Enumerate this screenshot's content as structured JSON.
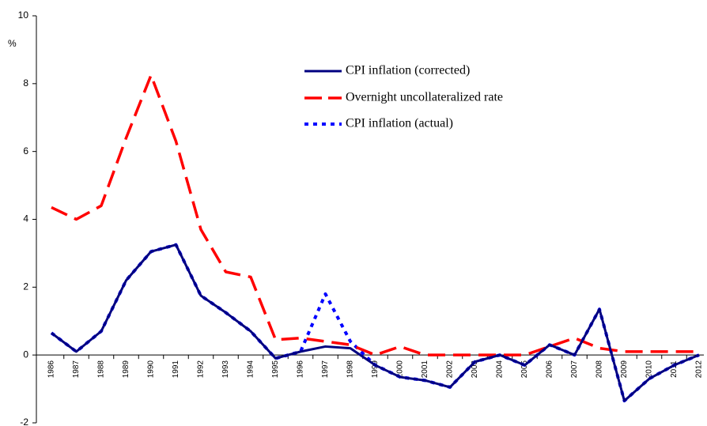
{
  "chart_data": {
    "type": "line",
    "y_label": "%",
    "categories": [
      "1986",
      "1987",
      "1988",
      "1989",
      "1990",
      "1991",
      "1992",
      "1993",
      "1994",
      "1995",
      "1996",
      "1997",
      "1998",
      "1999",
      "2000",
      "2001",
      "2002",
      "2003",
      "2004",
      "2005",
      "2006",
      "2007",
      "2008",
      "2009",
      "2010",
      "2011",
      "2012"
    ],
    "series": [
      {
        "name": "CPI inflation (actual)",
        "color": "#0000ff",
        "dash": "dotted",
        "values": [
          0.65,
          0.1,
          0.7,
          2.2,
          3.05,
          3.25,
          1.75,
          1.25,
          0.7,
          -0.1,
          0.1,
          1.8,
          0.4,
          -0.3,
          -0.65,
          -0.75,
          -0.95,
          -0.2,
          0.0,
          -0.3,
          0.3,
          0.0,
          1.35,
          -1.35,
          -0.7,
          -0.3,
          0.0
        ]
      },
      {
        "name": "Overnight uncollateralized rate",
        "color": "#ff0000",
        "dash": "dashed",
        "values": [
          4.35,
          4.0,
          4.4,
          6.4,
          8.25,
          6.3,
          3.7,
          2.45,
          2.3,
          0.45,
          0.5,
          0.4,
          0.3,
          0.0,
          0.25,
          0.0,
          0.0,
          0.0,
          0.0,
          0.0,
          0.25,
          0.5,
          0.2,
          0.1,
          0.1,
          0.1,
          0.1
        ]
      },
      {
        "name": "CPI inflation (corrected)",
        "color": "#000080",
        "dash": "solid",
        "values": [
          0.65,
          0.1,
          0.7,
          2.2,
          3.05,
          3.25,
          1.75,
          1.25,
          0.7,
          -0.1,
          0.1,
          0.25,
          0.2,
          -0.3,
          -0.65,
          -0.75,
          -0.95,
          -0.2,
          0.0,
          -0.3,
          0.3,
          0.0,
          1.35,
          -1.35,
          -0.7,
          -0.3,
          0.0
        ]
      }
    ],
    "ylim": [
      -2,
      10
    ],
    "yticks": [
      -2,
      0,
      2,
      4,
      6,
      8,
      10
    ],
    "grid": false
  }
}
